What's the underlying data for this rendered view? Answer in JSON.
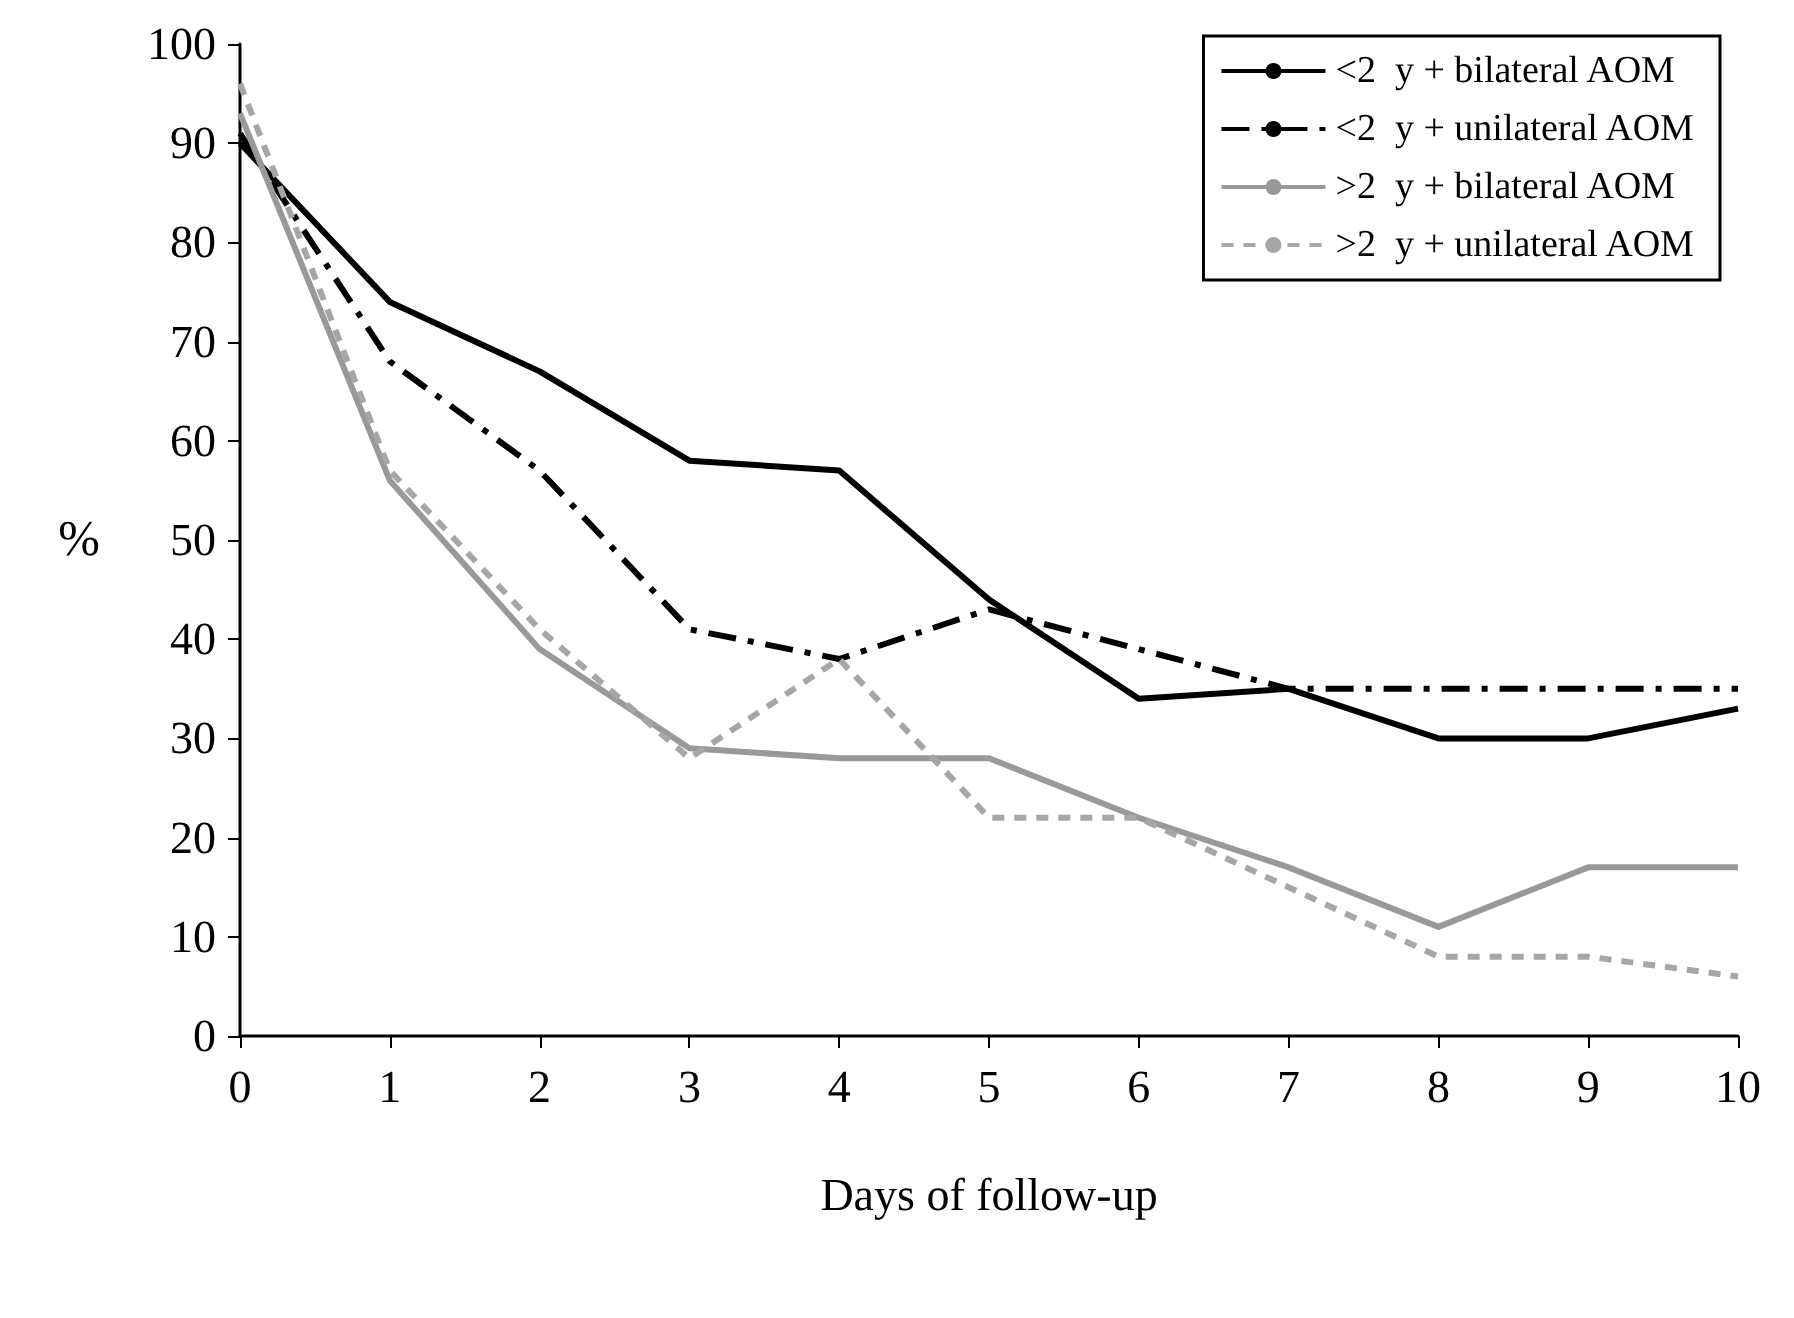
{
  "chart_data": {
    "type": "line",
    "xlabel": "Days of follow-up",
    "ylabel": "%",
    "x": [
      0,
      1,
      2,
      3,
      4,
      5,
      6,
      7,
      8,
      9,
      10
    ],
    "xlim": [
      0,
      10
    ],
    "xticks": [
      0,
      1,
      2,
      3,
      4,
      5,
      6,
      7,
      8,
      9,
      10
    ],
    "ylim": [
      0,
      100
    ],
    "yticks": [
      0,
      10,
      20,
      30,
      40,
      50,
      60,
      70,
      80,
      90,
      100
    ],
    "grid": false,
    "legend": "top right",
    "marker": "none",
    "series": [
      {
        "name": "<2  y + bilateral AOM",
        "color": "#000000",
        "line_style": "solid",
        "values": [
          90,
          74,
          67,
          58,
          57,
          44,
          34,
          35,
          30,
          30,
          33
        ]
      },
      {
        "name": "<2  y + unilateral AOM",
        "color": "#000000",
        "line_style": "dashed",
        "values": [
          91,
          68,
          57,
          41,
          38,
          43,
          39,
          35,
          35,
          35,
          35
        ]
      },
      {
        "name": ">2  y + bilateral AOM",
        "color": "#999999",
        "line_style": "solid",
        "values": [
          93,
          56,
          39,
          29,
          28,
          28,
          22,
          17,
          11,
          17,
          17
        ]
      },
      {
        "name": ">2  y + unilateral AOM",
        "color": "#a6a6a6",
        "line_style": "dotted",
        "values": [
          96,
          57,
          41,
          28,
          38,
          22,
          22,
          15,
          8,
          8,
          6
        ]
      }
    ]
  }
}
